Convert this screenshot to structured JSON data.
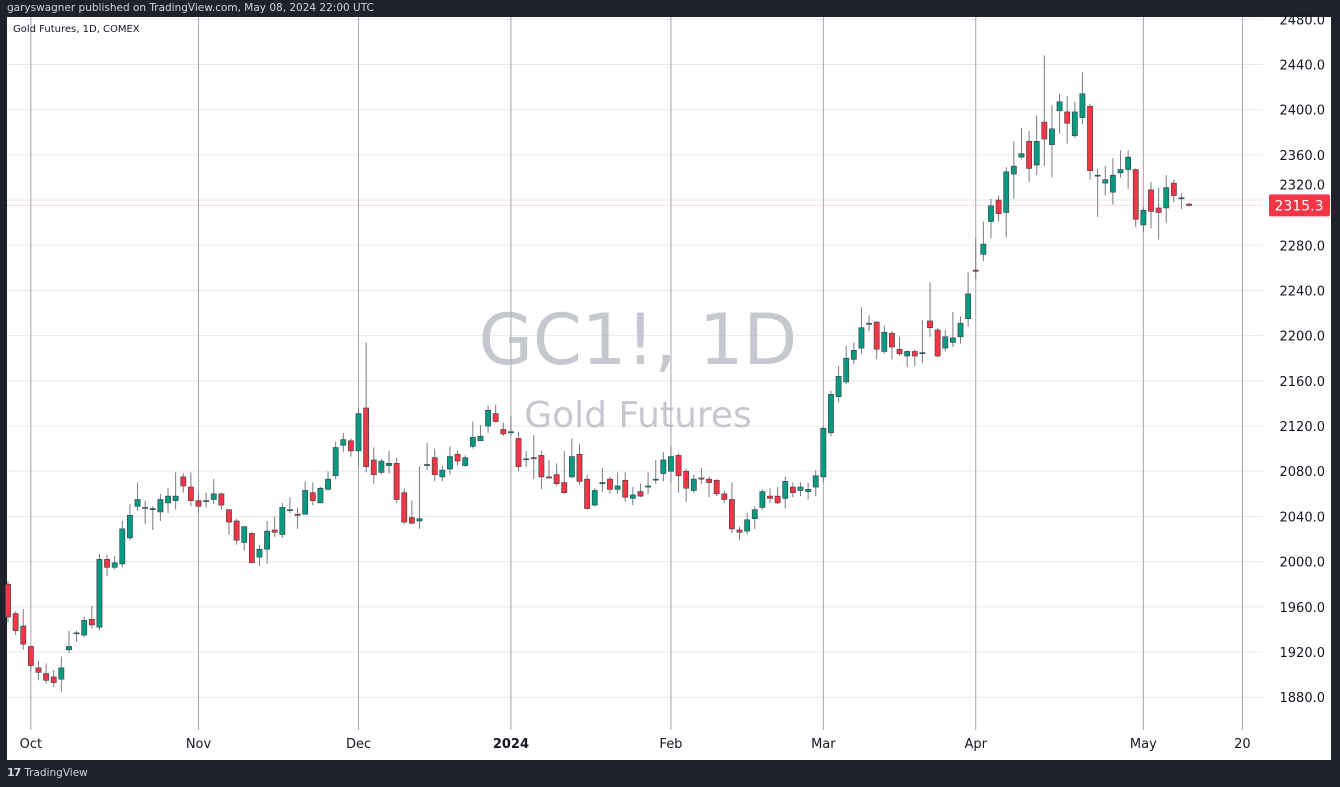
{
  "header": {
    "published": "garyswagner published on TradingView.com, May 08, 2024 22:00 UTC"
  },
  "legend": {
    "symbol_line": "Gold Futures, 1D, COMEX"
  },
  "watermark": {
    "symbol": "GC1!, 1D",
    "name": "Gold Futures"
  },
  "footer": {
    "brand": "TradingView",
    "logo_icon": "tradingview-logo-icon"
  },
  "colors": {
    "up": "#089981",
    "down": "#F23645",
    "grid": "#e6e8ee",
    "month_grid": "#a5a8b0",
    "frame": "#1e222d",
    "last_price": "#F23645"
  },
  "chart_data": {
    "type": "candlestick",
    "title": "",
    "ylim": [
      1851,
      2482
    ],
    "yticks": [
      "1880.0",
      "1920.0",
      "1960.0",
      "2000.0",
      "2040.0",
      "2080.0",
      "2120.0",
      "2160.0",
      "2200.0",
      "2240.0",
      "2280.0",
      "2320.0",
      "2360.0",
      "2400.0",
      "2440.0",
      "2480.0"
    ],
    "xticks": [
      {
        "date": "2023-10-02",
        "label": "Oct",
        "bold": false
      },
      {
        "date": "2023-11-01",
        "label": "Nov",
        "bold": false
      },
      {
        "date": "2023-12-01",
        "label": "Dec",
        "bold": false
      },
      {
        "date": "2024-01-02",
        "label": "2024",
        "bold": true
      },
      {
        "date": "2024-02-01",
        "label": "Feb",
        "bold": false
      },
      {
        "date": "2024-03-01",
        "label": "Mar",
        "bold": false
      },
      {
        "date": "2024-04-01",
        "label": "Apr",
        "bold": false
      },
      {
        "date": "2024-05-01",
        "label": "May",
        "bold": false
      },
      {
        "date": "2024-05-20",
        "label": "20",
        "bold": false
      }
    ],
    "grid": true,
    "last_price": {
      "value": 2315.3,
      "label": "2315.3"
    },
    "columns": [
      "date",
      "open",
      "high",
      "low",
      "close"
    ],
    "candles": [
      [
        "2023-09-27",
        1980,
        1983,
        1946,
        1951
      ],
      [
        "2023-09-28",
        1954,
        1956,
        1935,
        1939
      ],
      [
        "2023-09-29",
        1943,
        1958,
        1922,
        1927
      ],
      [
        "2023-10-02",
        1925,
        1925,
        1903,
        1908
      ],
      [
        "2023-10-03",
        1906,
        1912,
        1895,
        1902
      ],
      [
        "2023-10-04",
        1901,
        1910,
        1892,
        1895
      ],
      [
        "2023-10-05",
        1898,
        1904,
        1889,
        1893
      ],
      [
        "2023-10-06",
        1896,
        1916,
        1885,
        1906
      ],
      [
        "2023-10-09",
        1922,
        1939,
        1919,
        1925
      ],
      [
        "2023-10-10",
        1937,
        1939,
        1929,
        1937
      ],
      [
        "2023-10-11",
        1935,
        1951,
        1933,
        1948
      ],
      [
        "2023-10-12",
        1949,
        1961,
        1941,
        1944
      ],
      [
        "2023-10-13",
        1942,
        2007,
        1939,
        2002
      ],
      [
        "2023-10-16",
        2002,
        2006,
        1987,
        1995
      ],
      [
        "2023-10-17",
        1995,
        2005,
        1993,
        1999
      ],
      [
        "2023-10-18",
        1998,
        2036,
        1995,
        2029
      ],
      [
        "2023-10-19",
        2021,
        2051,
        2019,
        2041
      ],
      [
        "2023-10-20",
        2049,
        2070,
        2045,
        2055
      ],
      [
        "2023-10-23",
        2048,
        2054,
        2033,
        2048
      ],
      [
        "2023-10-24",
        2046,
        2049,
        2028,
        2047
      ],
      [
        "2023-10-25",
        2044,
        2060,
        2036,
        2055
      ],
      [
        "2023-10-26",
        2052,
        2065,
        2043,
        2058
      ],
      [
        "2023-10-27",
        2054,
        2079,
        2046,
        2058
      ],
      [
        "2023-10-30",
        2075,
        2078,
        2061,
        2067
      ],
      [
        "2023-10-31",
        2066,
        2079,
        2049,
        2054
      ],
      [
        "2023-11-01",
        2054,
        2061,
        2043,
        2049
      ],
      [
        "2023-11-02",
        2054,
        2061,
        2048,
        2054
      ],
      [
        "2023-11-03",
        2055,
        2073,
        2051,
        2060
      ],
      [
        "2023-11-06",
        2060,
        2061,
        2046,
        2050
      ],
      [
        "2023-11-07",
        2046,
        2046,
        2024,
        2035
      ],
      [
        "2023-11-08",
        2036,
        2038,
        2015,
        2019
      ],
      [
        "2023-11-09",
        2017,
        2031,
        2010,
        2031
      ],
      [
        "2023-11-10",
        2025,
        2026,
        1999,
        1999
      ],
      [
        "2023-11-13",
        2004,
        2015,
        1996,
        2011
      ],
      [
        "2023-11-14",
        2011,
        2036,
        1998,
        2027
      ],
      [
        "2023-11-15",
        2028,
        2040,
        2022,
        2026
      ],
      [
        "2023-11-16",
        2024,
        2052,
        2021,
        2048
      ],
      [
        "2023-11-17",
        2046,
        2057,
        2043,
        2046
      ],
      [
        "2023-11-20",
        2042,
        2048,
        2029,
        2041
      ],
      [
        "2023-11-21",
        2042,
        2071,
        2042,
        2063
      ],
      [
        "2023-11-22",
        2061,
        2070,
        2050,
        2054
      ],
      [
        "2023-11-24",
        2052,
        2066,
        2052,
        2065
      ],
      [
        "2023-11-27",
        2064,
        2080,
        2063,
        2073
      ],
      [
        "2023-11-28",
        2076,
        2106,
        2073,
        2101
      ],
      [
        "2023-11-29",
        2103,
        2114,
        2097,
        2108
      ],
      [
        "2023-11-30",
        2107,
        2109,
        2093,
        2098
      ],
      [
        "2023-12-01",
        2098,
        2136,
        2084,
        2131
      ],
      [
        "2023-12-04",
        2136,
        2194,
        2079,
        2084
      ],
      [
        "2023-12-05",
        2090,
        2101,
        2069,
        2077
      ],
      [
        "2023-12-06",
        2079,
        2091,
        2077,
        2089
      ],
      [
        "2023-12-07",
        2085,
        2098,
        2078,
        2087
      ],
      [
        "2023-12-08",
        2087,
        2092,
        2052,
        2055
      ],
      [
        "2023-12-11",
        2061,
        2065,
        2033,
        2035
      ],
      [
        "2023-12-12",
        2039,
        2054,
        2033,
        2034
      ],
      [
        "2023-12-13",
        2036,
        2084,
        2029,
        2038
      ],
      [
        "2023-12-14",
        2085,
        2105,
        2081,
        2086
      ],
      [
        "2023-12-15",
        2092,
        2100,
        2071,
        2077
      ],
      [
        "2023-12-18",
        2075,
        2085,
        2071,
        2081
      ],
      [
        "2023-12-19",
        2082,
        2102,
        2077,
        2093
      ],
      [
        "2023-12-20",
        2095,
        2098,
        2085,
        2089
      ],
      [
        "2023-12-21",
        2085,
        2094,
        2084,
        2092
      ],
      [
        "2023-12-22",
        2102,
        2124,
        2100,
        2110
      ],
      [
        "2023-12-26",
        2107,
        2121,
        2107,
        2111
      ],
      [
        "2023-12-27",
        2120,
        2138,
        2114,
        2134
      ],
      [
        "2023-12-28",
        2131,
        2139,
        2123,
        2124
      ],
      [
        "2023-12-29",
        2117,
        2123,
        2111,
        2113
      ],
      [
        "2024-01-02",
        2114,
        2129,
        2111,
        2115
      ],
      [
        "2024-01-03",
        2109,
        2115,
        2080,
        2084
      ],
      [
        "2024-01-04",
        2091,
        2098,
        2084,
        2091
      ],
      [
        "2024-01-05",
        2092,
        2112,
        2073,
        2091
      ],
      [
        "2024-01-08",
        2094,
        2098,
        2064,
        2075
      ],
      [
        "2024-01-09",
        2075,
        2090,
        2074,
        2074
      ],
      [
        "2024-01-10",
        2077,
        2087,
        2067,
        2069
      ],
      [
        "2024-01-11",
        2070,
        2098,
        2060,
        2061
      ],
      [
        "2024-01-12",
        2075,
        2109,
        2074,
        2093
      ],
      [
        "2024-01-16",
        2095,
        2104,
        2068,
        2071
      ],
      [
        "2024-01-17",
        2073,
        2077,
        2046,
        2047
      ],
      [
        "2024-01-18",
        2050,
        2065,
        2049,
        2063
      ],
      [
        "2024-01-19",
        2069,
        2083,
        2062,
        2070
      ],
      [
        "2024-01-22",
        2073,
        2075,
        2060,
        2064
      ],
      [
        "2024-01-23",
        2064,
        2079,
        2060,
        2067
      ],
      [
        "2024-01-24",
        2072,
        2079,
        2053,
        2057
      ],
      [
        "2024-01-25",
        2056,
        2066,
        2050,
        2059
      ],
      [
        "2024-01-26",
        2062,
        2069,
        2057,
        2058
      ],
      [
        "2024-01-29",
        2066,
        2079,
        2060,
        2067
      ],
      [
        "2024-01-30",
        2073,
        2090,
        2069,
        2073
      ],
      [
        "2024-01-31",
        2078,
        2097,
        2071,
        2090
      ],
      [
        "2024-02-01",
        2080,
        2102,
        2070,
        2093
      ],
      [
        "2024-02-02",
        2094,
        2096,
        2061,
        2076
      ],
      [
        "2024-02-05",
        2080,
        2082,
        2053,
        2065
      ],
      [
        "2024-02-06",
        2063,
        2077,
        2061,
        2073
      ],
      [
        "2024-02-07",
        2074,
        2083,
        2069,
        2073
      ],
      [
        "2024-02-08",
        2073,
        2075,
        2057,
        2070
      ],
      [
        "2024-02-09",
        2072,
        2073,
        2058,
        2060
      ],
      [
        "2024-02-12",
        2060,
        2063,
        2052,
        2055
      ],
      [
        "2024-02-13",
        2055,
        2070,
        2025,
        2029
      ],
      [
        "2024-02-14",
        2028,
        2031,
        2019,
        2026
      ],
      [
        "2024-02-15",
        2027,
        2043,
        2024,
        2037
      ],
      [
        "2024-02-16",
        2038,
        2049,
        2029,
        2046
      ],
      [
        "2024-02-20",
        2048,
        2064,
        2046,
        2062
      ],
      [
        "2024-02-21",
        2058,
        2065,
        2052,
        2056
      ],
      [
        "2024-02-22",
        2058,
        2066,
        2051,
        2052
      ],
      [
        "2024-02-23",
        2056,
        2075,
        2047,
        2071
      ],
      [
        "2024-02-26",
        2066,
        2070,
        2057,
        2061
      ],
      [
        "2024-02-27",
        2063,
        2070,
        2058,
        2066
      ],
      [
        "2024-02-28",
        2062,
        2070,
        2055,
        2064
      ],
      [
        "2024-02-29",
        2066,
        2081,
        2058,
        2076
      ],
      [
        "2024-03-01",
        2075,
        2120,
        2070,
        2118
      ],
      [
        "2024-03-04",
        2114,
        2151,
        2111,
        2148
      ],
      [
        "2024-03-05",
        2146,
        2173,
        2141,
        2164
      ],
      [
        "2024-03-06",
        2159,
        2191,
        2157,
        2180
      ],
      [
        "2024-03-07",
        2179,
        2194,
        2175,
        2187
      ],
      [
        "2024-03-08",
        2189,
        2225,
        2184,
        2207
      ],
      [
        "2024-03-11",
        2210,
        2218,
        2204,
        2211
      ],
      [
        "2024-03-12",
        2212,
        2213,
        2179,
        2188
      ],
      [
        "2024-03-13",
        2186,
        2209,
        2184,
        2203
      ],
      [
        "2024-03-14",
        2202,
        2204,
        2179,
        2190
      ],
      [
        "2024-03-15",
        2188,
        2199,
        2182,
        2184
      ],
      [
        "2024-03-18",
        2182,
        2187,
        2172,
        2186
      ],
      [
        "2024-03-19",
        2186,
        2188,
        2173,
        2182
      ],
      [
        "2024-03-20",
        2184,
        2214,
        2176,
        2185
      ],
      [
        "2024-03-21",
        2213,
        2247,
        2199,
        2207
      ],
      [
        "2024-03-22",
        2205,
        2207,
        2181,
        2182
      ],
      [
        "2024-03-25",
        2189,
        2205,
        2186,
        2199
      ],
      [
        "2024-03-26",
        2194,
        2221,
        2190,
        2198
      ],
      [
        "2024-03-27",
        2199,
        2217,
        2193,
        2211
      ],
      [
        "2024-03-28",
        2215,
        2256,
        2208,
        2237
      ],
      [
        "2024-04-01",
        2258,
        2286,
        2250,
        2257
      ],
      [
        "2024-04-02",
        2272,
        2301,
        2266,
        2281
      ],
      [
        "2024-04-03",
        2301,
        2321,
        2286,
        2315
      ],
      [
        "2024-04-04",
        2320,
        2324,
        2301,
        2308
      ],
      [
        "2024-04-05",
        2309,
        2349,
        2287,
        2345
      ],
      [
        "2024-04-08",
        2343,
        2372,
        2321,
        2350
      ],
      [
        "2024-04-09",
        2358,
        2384,
        2356,
        2361
      ],
      [
        "2024-04-10",
        2372,
        2381,
        2336,
        2348
      ],
      [
        "2024-04-11",
        2351,
        2395,
        2342,
        2372
      ],
      [
        "2024-04-12",
        2389,
        2448,
        2350,
        2374
      ],
      [
        "2024-04-15",
        2369,
        2404,
        2340,
        2383
      ],
      [
        "2024-04-16",
        2399,
        2414,
        2379,
        2407
      ],
      [
        "2024-04-17",
        2398,
        2412,
        2370,
        2388
      ],
      [
        "2024-04-18",
        2377,
        2407,
        2375,
        2398
      ],
      [
        "2024-04-19",
        2393,
        2433,
        2387,
        2414
      ],
      [
        "2024-04-22",
        2403,
        2405,
        2338,
        2346
      ],
      [
        "2024-04-23",
        2342,
        2348,
        2305,
        2342
      ],
      [
        "2024-04-24",
        2335,
        2350,
        2324,
        2338
      ],
      [
        "2024-04-25",
        2327,
        2357,
        2316,
        2342
      ],
      [
        "2024-04-26",
        2344,
        2364,
        2340,
        2347
      ],
      [
        "2024-04-29",
        2347,
        2364,
        2330,
        2358
      ],
      [
        "2024-04-30",
        2347,
        2348,
        2296,
        2303
      ],
      [
        "2024-05-01",
        2298,
        2314,
        2292,
        2311
      ],
      [
        "2024-05-02",
        2329,
        2336,
        2295,
        2310
      ],
      [
        "2024-05-03",
        2313,
        2331,
        2285,
        2309
      ],
      [
        "2024-05-06",
        2313,
        2342,
        2300,
        2331
      ],
      [
        "2024-05-07",
        2335,
        2338,
        2318,
        2324
      ],
      [
        "2024-05-08",
        2322,
        2326,
        2312,
        2322
      ],
      [
        "2024-05-09",
        2316.5,
        2317,
        2314,
        2315.3
      ]
    ]
  }
}
